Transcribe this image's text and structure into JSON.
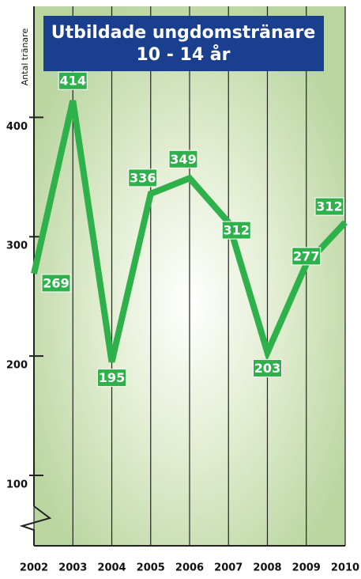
{
  "chart_data": {
    "type": "line",
    "title": "Utbildade ungdomstränare",
    "subtitle": "10 - 14 år",
    "y_label": "Antal tränare",
    "x": [
      2002,
      2003,
      2004,
      2005,
      2006,
      2007,
      2008,
      2009,
      2010
    ],
    "series": [
      {
        "name": "Utbildade ungdomstränare",
        "color": "#2eb04b",
        "values": [
          269,
          414,
          195,
          336,
          349,
          312,
          203,
          277,
          312
        ]
      }
    ],
    "xlim": [
      2002,
      2010
    ],
    "xticks": [
      2002,
      2003,
      2004,
      2005,
      2006,
      2007,
      2008,
      2009,
      2010
    ],
    "ylim": [
      41,
      493
    ],
    "yticks": [
      100,
      200,
      300,
      400
    ],
    "grid": true
  }
}
